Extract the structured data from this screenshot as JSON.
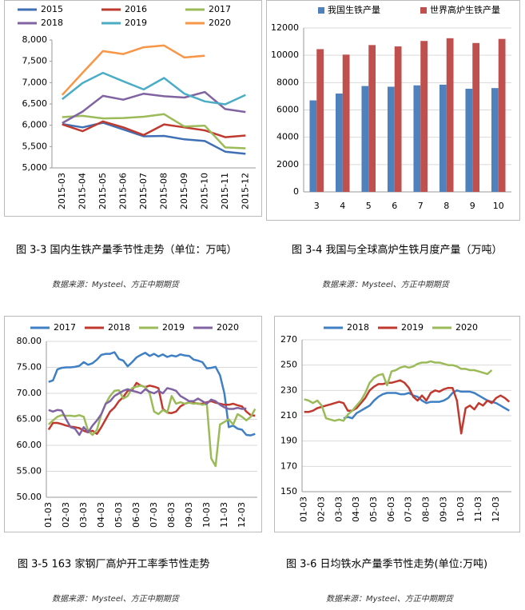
{
  "chart_data": [
    {
      "type": "line",
      "categories": [
        "2015-03",
        "2015-04",
        "2015-05",
        "2015-06",
        "2015-07",
        "2015-08",
        "2015-09",
        "2015-10",
        "2015-11",
        "2015-12"
      ],
      "ylim": [
        5000,
        8000
      ],
      "yticks": [
        {
          "value": 5000,
          "label": "5,000"
        },
        {
          "value": 5500,
          "label": "5,500"
        },
        {
          "value": 6000,
          "label": "6,000"
        },
        {
          "value": 6500,
          "label": "6,500"
        },
        {
          "value": 7000,
          "label": "7,000"
        },
        {
          "value": 7500,
          "label": "7,500"
        },
        {
          "value": 8000,
          "label": "8,000"
        }
      ],
      "grid": false,
      "legend": "top",
      "series": [
        {
          "name": "2015",
          "color": "#3f6fb5",
          "values": [
            6030,
            5950,
            6060,
            5900,
            5740,
            5750,
            5670,
            5630,
            5380,
            5330
          ]
        },
        {
          "name": "2016",
          "color": "#c0392f",
          "values": [
            6020,
            5860,
            6090,
            5950,
            5770,
            6020,
            5950,
            5880,
            5720,
            5760
          ]
        },
        {
          "name": "2017",
          "color": "#9bbb59",
          "values": [
            6190,
            6220,
            6160,
            6170,
            6200,
            6260,
            5970,
            5990,
            5480,
            5460
          ]
        },
        {
          "name": "2018",
          "color": "#8064a2",
          "values": [
            6050,
            6320,
            6690,
            6600,
            6740,
            6680,
            6650,
            6780,
            6380,
            6310
          ]
        },
        {
          "name": "2019",
          "color": "#4bacc6",
          "values": [
            6610,
            6990,
            7230,
            7030,
            6840,
            7110,
            6740,
            6560,
            6490,
            6710
          ]
        },
        {
          "name": "2020",
          "color": "#f79646",
          "values": [
            6710,
            7230,
            7740,
            7670,
            7830,
            7870,
            7590,
            7630,
            null,
            null
          ]
        }
      ]
    },
    {
      "type": "bar",
      "categories": [
        "3",
        "4",
        "5",
        "6",
        "7",
        "8",
        "9",
        "10"
      ],
      "ylim": [
        0,
        12000
      ],
      "yticks": [
        0,
        2000,
        4000,
        6000,
        8000,
        10000,
        12000
      ],
      "grid": true,
      "legend": "top",
      "series": [
        {
          "name": "我国生铁产量",
          "color": "#4f81bd",
          "values": [
            6700,
            7200,
            7750,
            7700,
            7800,
            7850,
            7550,
            7600
          ]
        },
        {
          "name": "世界高炉生铁产量",
          "color": "#c0504d",
          "values": [
            10450,
            10050,
            10750,
            10650,
            11050,
            11250,
            10900,
            11200
          ]
        }
      ]
    },
    {
      "type": "line",
      "categories": [
        "01-03",
        null,
        null,
        null,
        "02-03",
        null,
        null,
        null,
        "03-03",
        null,
        null,
        null,
        "04-03",
        null,
        null,
        null,
        "05-03",
        null,
        null,
        null,
        "06-03",
        null,
        null,
        null,
        "07-03",
        null,
        null,
        null,
        "08-03",
        null,
        null,
        null,
        "09-03",
        null,
        null,
        null,
        "10-03",
        null,
        null,
        null,
        "11-03",
        null,
        null,
        null,
        "12-03",
        null,
        null,
        null
      ],
      "ylim": [
        50,
        80
      ],
      "yticks": [
        {
          "value": 50,
          "label": "50.00"
        },
        {
          "value": 55,
          "label": "55.00"
        },
        {
          "value": 60,
          "label": "60.00"
        },
        {
          "value": 65,
          "label": "65.00"
        },
        {
          "value": 70,
          "label": "70.00"
        },
        {
          "value": 75,
          "label": "75.00"
        },
        {
          "value": 80,
          "label": "80.00"
        }
      ],
      "grid": true,
      "legend": "top",
      "series": [
        {
          "name": "2017",
          "color": "#3f7fc4",
          "values": [
            72.2,
            72.5,
            74.6,
            74.9,
            75.0,
            75.0,
            75.1,
            75.3,
            76.0,
            75.5,
            75.8,
            76.5,
            77.4,
            77.6,
            77.6,
            77.9,
            76.6,
            76.3,
            75.2,
            76.0,
            76.9,
            77.4,
            77.8,
            77.2,
            77.6,
            77.1,
            77.5,
            77.0,
            77.3,
            77.1,
            77.5,
            77.3,
            77.2,
            76.5,
            76.3,
            76.0,
            74.8,
            74.9,
            75.1,
            73.5,
            70.0,
            63.5,
            63.8,
            63.2,
            63.0,
            62.0,
            61.9,
            62.2
          ]
        },
        {
          "name": "2018",
          "color": "#c0392f",
          "values": [
            63.0,
            64.3,
            64.3,
            64.1,
            63.8,
            63.6,
            63.5,
            63.3,
            62.8,
            62.5,
            62.8,
            62.2,
            63.5,
            65.0,
            66.5,
            67.3,
            68.5,
            69.3,
            70.5,
            70.6,
            72.0,
            71.5,
            71.2,
            71.5,
            71.3,
            71.0,
            67.0,
            66.3,
            66.2,
            66.5,
            67.5,
            68.0,
            68.3,
            68.2,
            68.0,
            68.0,
            68.3,
            68.5,
            68.2,
            68.0,
            67.8,
            67.8,
            68.0,
            67.7,
            67.5,
            66.5,
            65.8,
            65.7
          ]
        },
        {
          "name": "2019",
          "color": "#9bbb59",
          "values": [
            64.0,
            64.8,
            65.5,
            65.8,
            65.7,
            65.7,
            65.6,
            65.8,
            65.5,
            62.8,
            62.0,
            63.0,
            66.0,
            68.0,
            69.5,
            70.5,
            70.6,
            69.0,
            69.5,
            71.0,
            71.3,
            71.5,
            71.2,
            70.0,
            66.5,
            66.0,
            66.8,
            66.3,
            69.5,
            68.0,
            68.3,
            68.0,
            68.2,
            68.0,
            68.1,
            67.8,
            68.0,
            57.5,
            56.0,
            64.0,
            64.5,
            65.0,
            64.0,
            66.0,
            65.5,
            64.8,
            65.5,
            67.0
          ]
        },
        {
          "name": "2020",
          "color": "#8064a2",
          "values": [
            66.8,
            66.5,
            66.8,
            66.7,
            65.0,
            63.5,
            63.2,
            62.0,
            63.5,
            62.5,
            63.8,
            64.8,
            66.0,
            68.0,
            68.5,
            69.5,
            70.0,
            70.5,
            70.8,
            70.5,
            70.3,
            70.0,
            70.8,
            70.3,
            70.0,
            70.5,
            70.0,
            71.0,
            70.8,
            70.5,
            69.5,
            69.0,
            68.5,
            68.5,
            69.0,
            68.5,
            68.0,
            68.8,
            68.5,
            67.8,
            67.3,
            67.0,
            67.0,
            67.2,
            67.0,
            67.1,
            null,
            null
          ]
        }
      ]
    },
    {
      "type": "line",
      "categories": [
        "01-03",
        null,
        null,
        null,
        "02-03",
        null,
        null,
        null,
        "03-03",
        null,
        null,
        null,
        "04-03",
        null,
        null,
        null,
        "05-03",
        null,
        null,
        null,
        "06-03",
        null,
        null,
        null,
        "07-03",
        null,
        null,
        null,
        "08-03",
        null,
        null,
        null,
        "09-03",
        null,
        null,
        null,
        "10-03",
        null,
        null,
        null,
        "11-03",
        null,
        null,
        null,
        "12-03",
        null,
        null,
        null
      ],
      "ylim": [
        150,
        270
      ],
      "yticks": [
        150,
        170,
        190,
        210,
        230,
        250,
        270
      ],
      "grid": true,
      "legend": "top",
      "series": [
        {
          "name": "2018",
          "color": "#3f7fc4",
          "values": [
            null,
            null,
            null,
            null,
            null,
            null,
            null,
            null,
            null,
            208,
            209,
            208,
            212,
            214,
            216,
            218,
            222,
            225,
            227,
            228,
            228,
            228,
            227,
            227,
            228,
            226,
            225,
            222,
            220,
            221,
            221,
            221,
            222,
            224,
            228,
            230,
            229,
            229,
            229,
            228,
            226,
            224,
            222,
            221,
            220,
            218,
            216,
            214
          ]
        },
        {
          "name": "2019",
          "color": "#c0392f",
          "values": [
            213,
            213,
            214,
            216,
            217,
            218,
            219,
            220,
            221,
            220,
            214,
            214,
            216,
            220,
            224,
            230,
            233,
            235,
            235,
            236,
            236,
            237,
            238,
            236,
            232,
            225,
            222,
            226,
            222,
            228,
            230,
            229,
            231,
            232,
            232,
            222,
            196,
            216,
            218,
            215,
            220,
            218,
            222,
            220,
            224,
            226,
            224,
            221
          ]
        },
        {
          "name": "2020",
          "color": "#9bbb59",
          "values": [
            223,
            222,
            220,
            222,
            218,
            208,
            207,
            206,
            207,
            206,
            211,
            214,
            218,
            222,
            228,
            236,
            240,
            242,
            243,
            234,
            245,
            246,
            248,
            249,
            248,
            249,
            251,
            252,
            252,
            253,
            252,
            252,
            251,
            250,
            250,
            249,
            247,
            247,
            246,
            246,
            245,
            244,
            243,
            246,
            null,
            null,
            null,
            null
          ]
        }
      ]
    }
  ],
  "captions": [
    "图 3-3  国内生铁产量季节性走势（单位：万吨）",
    "图 3-4  我国与全球高炉生铁月度产量（万吨）",
    "图 3-5 163 家钢厂高炉开工率季节性走势",
    "图 3-6  日均铁水产量季节性走势(单位:万吨)"
  ],
  "sources": [
    "数据来源：Mysteel、方正中期期货",
    "数据来源：Mysteel、方正中期期货",
    "数据来源：Mysteel、方正中期期货",
    "数据来源：Mysteel、方正中期期货"
  ]
}
